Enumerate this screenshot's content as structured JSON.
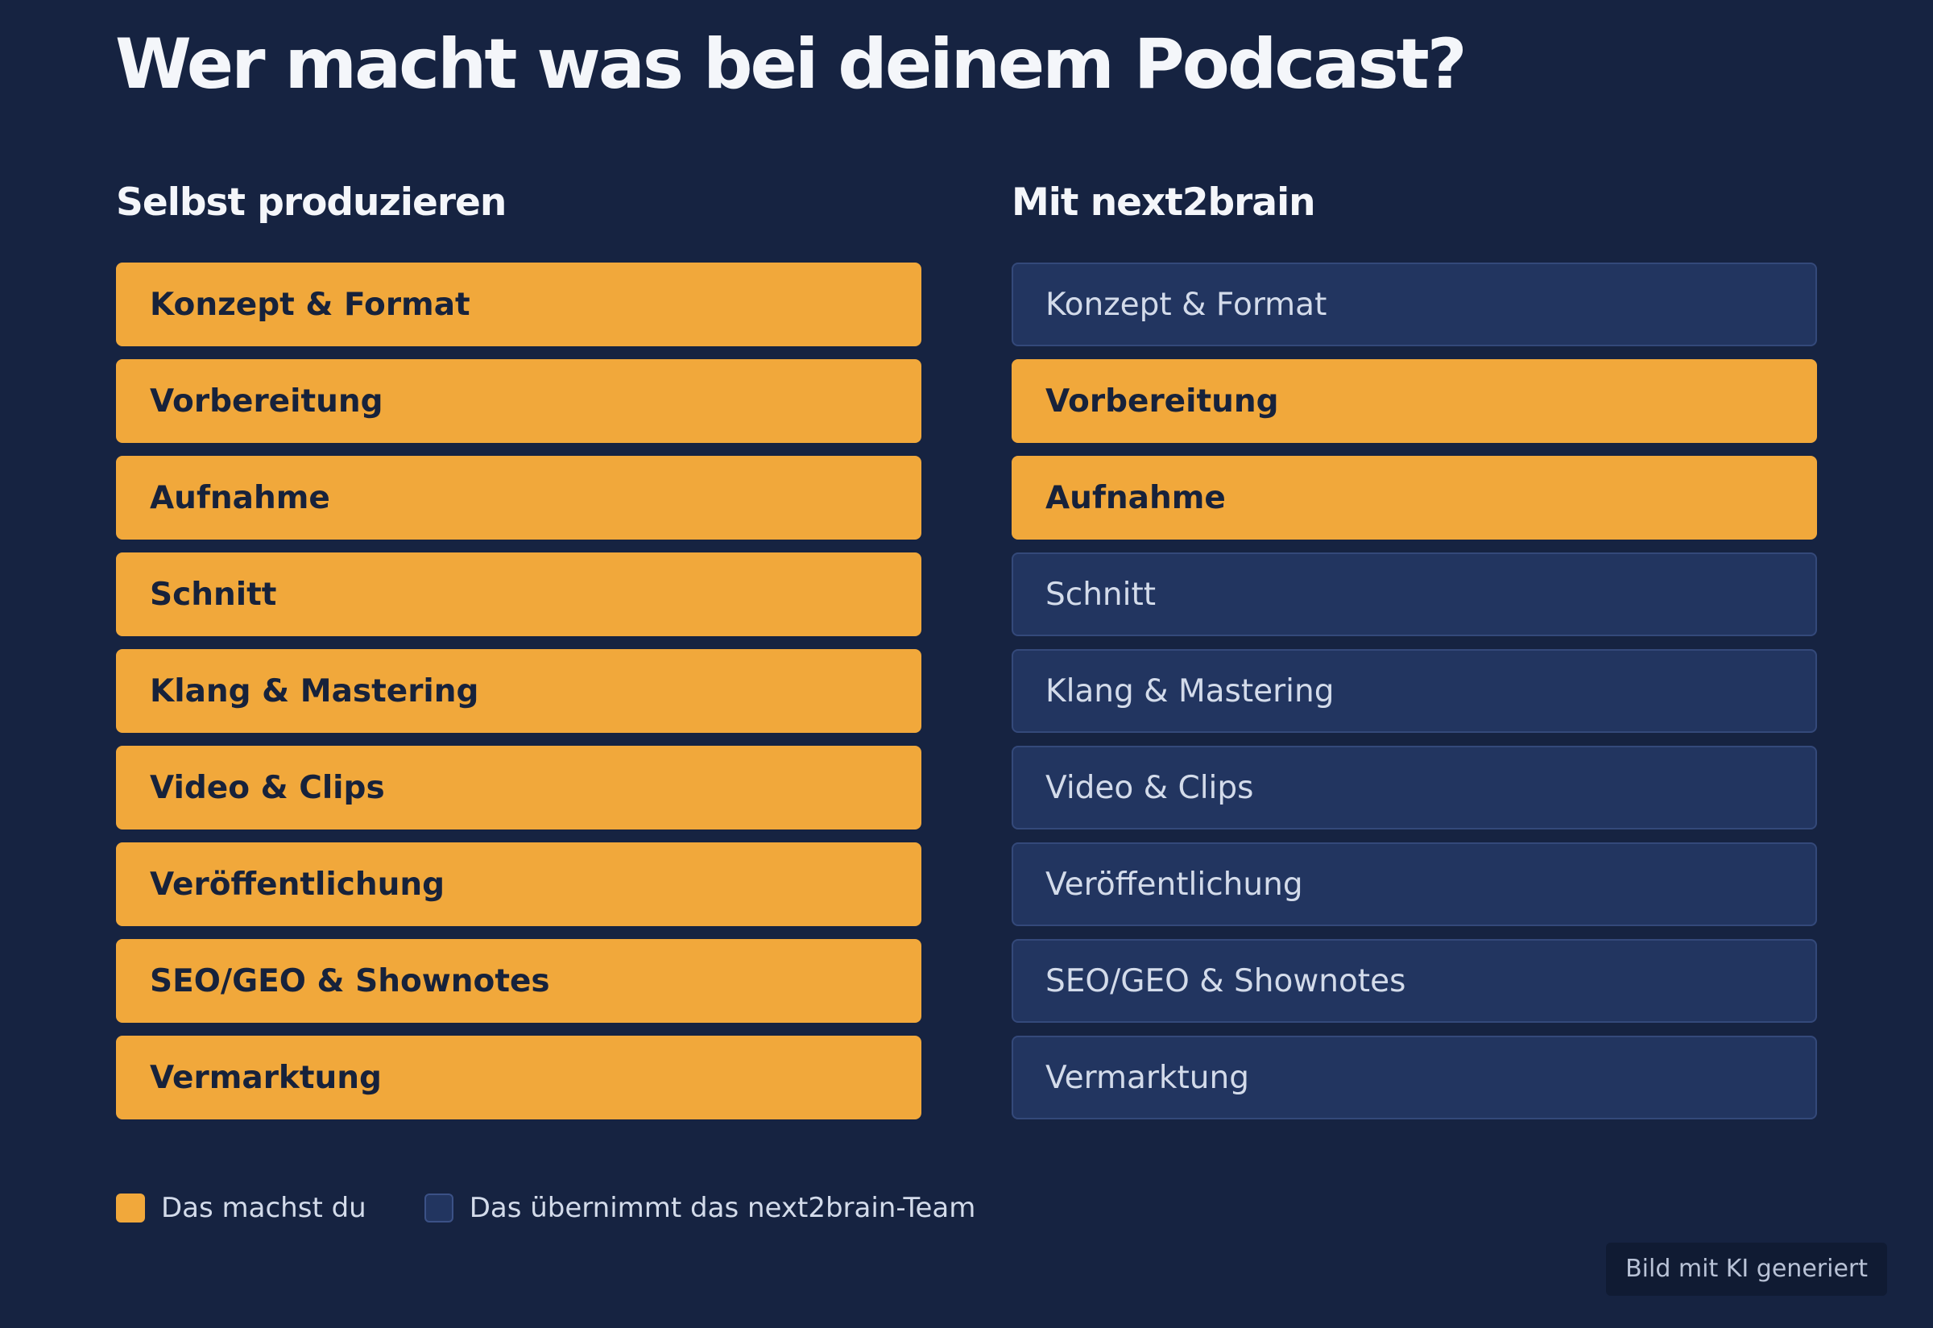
{
  "page": {
    "title": "Wer macht was bei deinem Podcast?"
  },
  "columns": [
    {
      "heading": "Selbst produzieren",
      "tasks": [
        {
          "label": "Konzept & Format",
          "owner": "self"
        },
        {
          "label": "Vorbereitung",
          "owner": "self"
        },
        {
          "label": "Aufnahme",
          "owner": "self"
        },
        {
          "label": "Schnitt",
          "owner": "self"
        },
        {
          "label": "Klang & Mastering",
          "owner": "self"
        },
        {
          "label": "Video & Clips",
          "owner": "self"
        },
        {
          "label": "Veröffentlichung",
          "owner": "self"
        },
        {
          "label": "SEO/GEO & Shownotes",
          "owner": "self"
        },
        {
          "label": "Vermarktung",
          "owner": "self"
        }
      ]
    },
    {
      "heading": "Mit next2brain",
      "tasks": [
        {
          "label": "Konzept & Format",
          "owner": "team"
        },
        {
          "label": "Vorbereitung",
          "owner": "self"
        },
        {
          "label": "Aufnahme",
          "owner": "self"
        },
        {
          "label": "Schnitt",
          "owner": "team"
        },
        {
          "label": "Klang & Mastering",
          "owner": "team"
        },
        {
          "label": "Video & Clips",
          "owner": "team"
        },
        {
          "label": "Veröffentlichung",
          "owner": "team"
        },
        {
          "label": "SEO/GEO & Shownotes",
          "owner": "team"
        },
        {
          "label": "Vermarktung",
          "owner": "team"
        }
      ]
    }
  ],
  "legend": {
    "self_label": "Das machst du",
    "team_label": "Das übernimmt das next2brain-Team"
  },
  "badge": {
    "label": "Bild mit KI generiert"
  },
  "colors": {
    "background": "#162341",
    "self": "#f1a83b",
    "team": "#223560"
  }
}
